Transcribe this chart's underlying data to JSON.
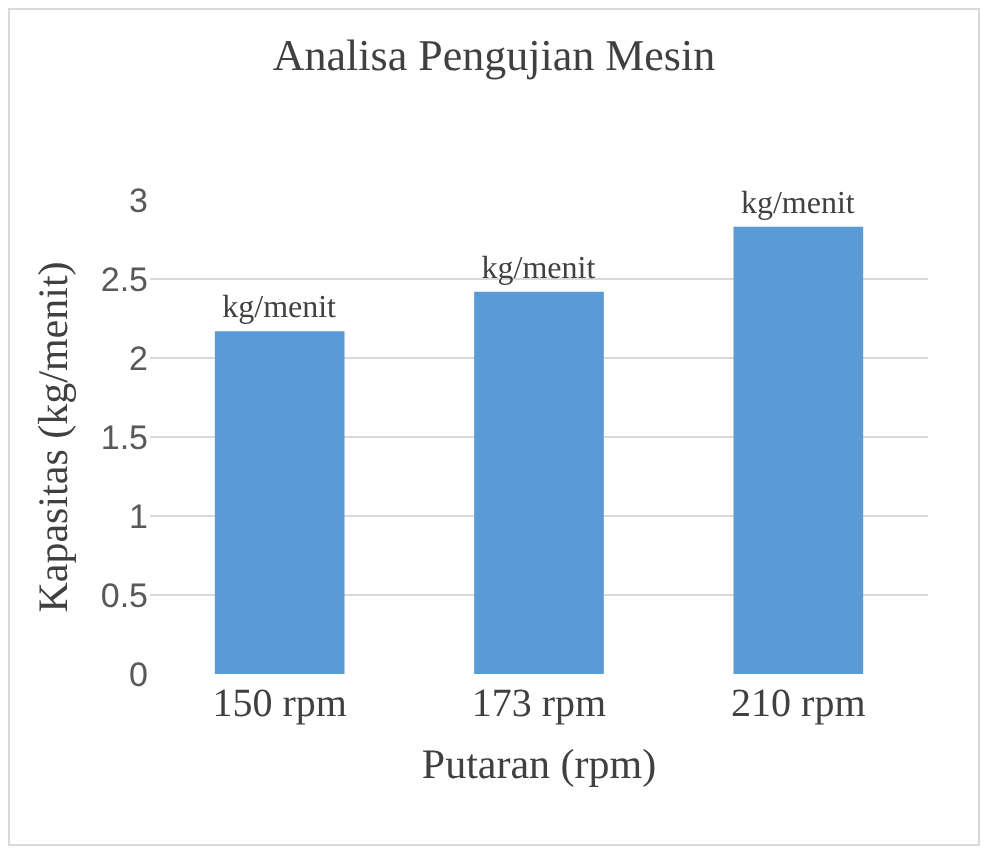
{
  "chart_data": {
    "type": "bar",
    "title": "Analisa Pengujian Mesin",
    "xlabel": "Putaran (rpm)",
    "ylabel": "Kapasitas (kg/menit)",
    "categories": [
      "150 rpm",
      "173 rpm",
      "210 rpm"
    ],
    "values": [
      2.17,
      2.42,
      2.83
    ],
    "value_labels": [
      "kg/menit",
      "kg/menit",
      "kg/menit"
    ],
    "color": "#5b9bd5",
    "ylim": [
      0,
      3
    ],
    "yticks": [
      0,
      0.5,
      1,
      1.5,
      2,
      2.5,
      3
    ],
    "grid": "y",
    "legend": false
  }
}
